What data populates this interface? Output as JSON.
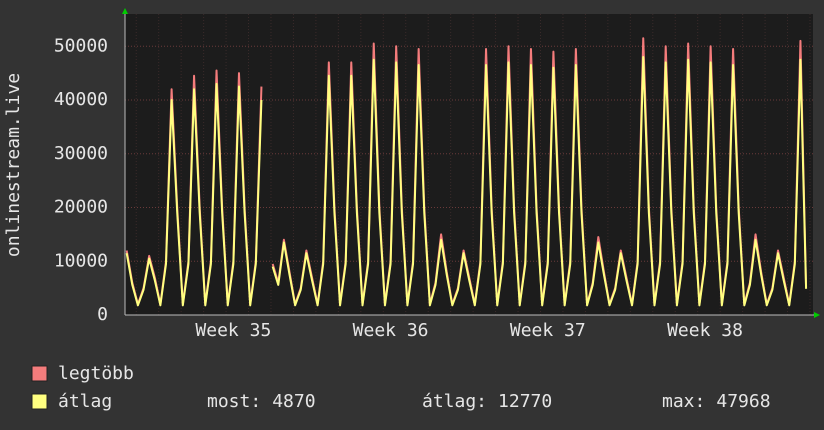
{
  "chart_data": {
    "type": "line",
    "y_label": "onlinestream.live",
    "categories": [
      null,
      null,
      null,
      null,
      null,
      null,
      null,
      null,
      null,
      null,
      null,
      null,
      null,
      null,
      null,
      null,
      null,
      null,
      null,
      "Week 35",
      null,
      null,
      null,
      null,
      null,
      null,
      null,
      null,
      null,
      null,
      null,
      null,
      null,
      null,
      null,
      null,
      null,
      null,
      null,
      null,
      null,
      null,
      null,
      null,
      null,
      null,
      null,
      "Week 36",
      null,
      null,
      null,
      null,
      null,
      null,
      null,
      null,
      null,
      null,
      null,
      null,
      null,
      null,
      null,
      null,
      null,
      null,
      null,
      null,
      null,
      null,
      null,
      null,
      null,
      null,
      null,
      "Week 37",
      null,
      null,
      null,
      null,
      null,
      null,
      null,
      null,
      null,
      null,
      null,
      null,
      null,
      null,
      null,
      null,
      null,
      null,
      null,
      null,
      null,
      null,
      null,
      null,
      null,
      null,
      null,
      "Week 38",
      null,
      null,
      null,
      null,
      null,
      null,
      null,
      null,
      null,
      null,
      null,
      null,
      null,
      null,
      null,
      null,
      null,
      null
    ],
    "series": [
      {
        "name": "legtöbb",
        "color": "#f47c7c",
        "values": [
          12000,
          6000,
          2000,
          5000,
          11000,
          7000,
          2000,
          10000,
          42000,
          20000,
          2000,
          10000,
          44500,
          20000,
          2000,
          10000,
          45500,
          20000,
          2000,
          10000,
          45000,
          20000,
          2000,
          10000,
          42500,
          null,
          9500,
          6000,
          14000,
          8000,
          2000,
          5000,
          12000,
          7000,
          2000,
          10000,
          47000,
          20000,
          2000,
          10000,
          47000,
          20000,
          2000,
          10000,
          50500,
          20000,
          2000,
          10000,
          50000,
          20000,
          2000,
          10000,
          49500,
          20000,
          2000,
          6000,
          15000,
          8000,
          2000,
          5000,
          12000,
          7000,
          2000,
          10000,
          49500,
          20000,
          2000,
          10000,
          50000,
          20000,
          2000,
          10000,
          49500,
          20000,
          2000,
          10000,
          49000,
          20000,
          2000,
          10000,
          49500,
          20000,
          2000,
          6000,
          14500,
          8000,
          2000,
          5000,
          12000,
          7000,
          2000,
          10000,
          51500,
          20000,
          2000,
          10000,
          50000,
          20000,
          2000,
          10000,
          50500,
          20000,
          2000,
          10000,
          50000,
          20000,
          2000,
          10000,
          49500,
          20000,
          2000,
          6000,
          15000,
          8000,
          2000,
          5000,
          12000,
          7000,
          2000,
          10000,
          51000,
          5200
        ]
      },
      {
        "name": "átlag",
        "color": "#ffff80",
        "values": [
          11500,
          5600,
          1800,
          4700,
          10500,
          6500,
          1800,
          9500,
          40000,
          19000,
          1800,
          9500,
          42000,
          19000,
          1800,
          9500,
          43000,
          19000,
          1800,
          9500,
          42500,
          19000,
          1800,
          9500,
          40000,
          null,
          9000,
          5600,
          13500,
          7500,
          1800,
          4700,
          11500,
          6500,
          1800,
          9500,
          44500,
          19000,
          1800,
          9500,
          44500,
          19000,
          1800,
          9500,
          47500,
          19000,
          1800,
          9500,
          47000,
          19000,
          1800,
          9500,
          46500,
          19000,
          1800,
          5600,
          14000,
          7500,
          1800,
          4700,
          11500,
          6500,
          1800,
          9500,
          46500,
          19000,
          1800,
          9500,
          47000,
          19000,
          1800,
          9500,
          46500,
          19000,
          1800,
          9500,
          46000,
          19000,
          1800,
          9500,
          46500,
          19000,
          1800,
          5600,
          13500,
          7500,
          1800,
          4700,
          11500,
          6500,
          1800,
          9500,
          48000,
          19000,
          1800,
          9500,
          47000,
          19000,
          1800,
          9500,
          47500,
          19000,
          1800,
          9500,
          47000,
          19000,
          1800,
          9500,
          46500,
          19000,
          1800,
          5600,
          14000,
          7500,
          1800,
          4700,
          11500,
          6500,
          1800,
          9500,
          47500,
          4870
        ]
      }
    ],
    "ylim": [
      0,
      56000
    ],
    "yticks": [
      0,
      10000,
      20000,
      30000,
      40000,
      50000
    ],
    "grid": true,
    "stats": [
      {
        "label": "most:",
        "value": 4870
      },
      {
        "label": "átlag:",
        "value": 12770
      },
      {
        "label": "max:",
        "value": 47968
      }
    ]
  }
}
